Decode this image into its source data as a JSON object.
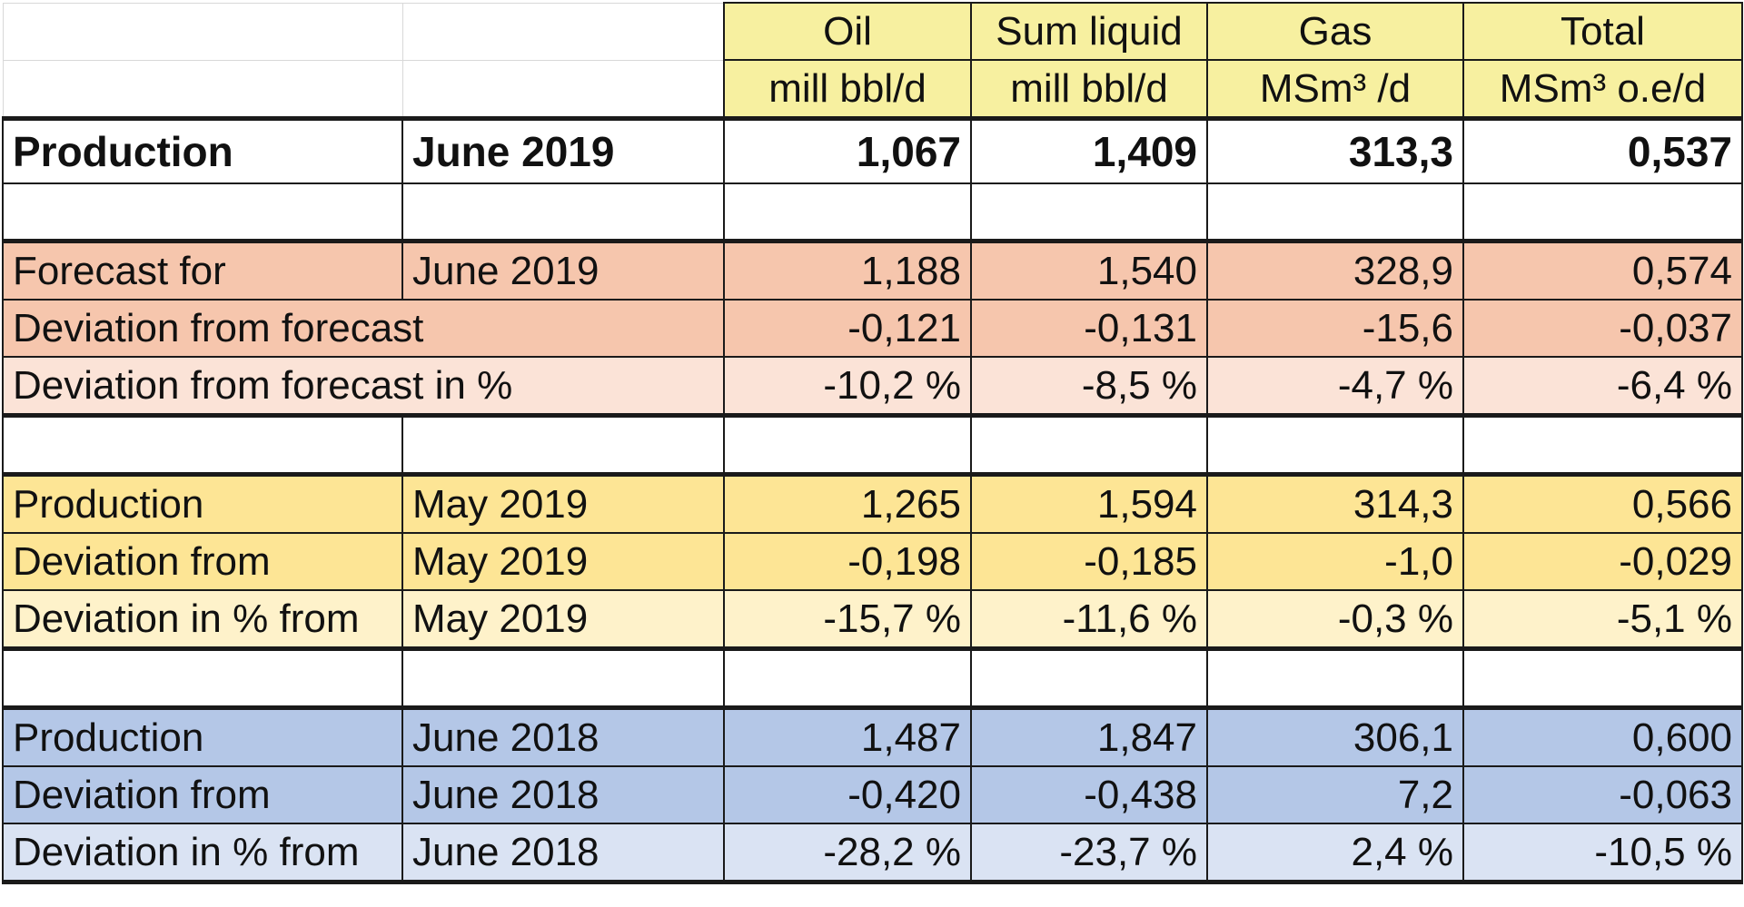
{
  "header": {
    "columns": [
      {
        "name": "Oil",
        "unit": "mill bbl/d"
      },
      {
        "name": "Sum liquid",
        "unit": "mill bbl/d"
      },
      {
        "name": "Gas",
        "unit": "MSm³ /d"
      },
      {
        "name": "Total",
        "unit": "MSm³ o.e/d"
      }
    ]
  },
  "main": {
    "label": "Production",
    "period": "June 2019",
    "values": [
      "1,067",
      "1,409",
      "313,3",
      "0,537"
    ]
  },
  "forecast": {
    "row1": {
      "label": "Forecast for",
      "period": "June 2019",
      "values": [
        "1,188",
        "1,540",
        "328,9",
        "0,574"
      ]
    },
    "row2": {
      "label": "Deviation from forecast",
      "values": [
        "-0,121",
        "-0,131",
        "-15,6",
        "-0,037"
      ]
    },
    "row3": {
      "label": "Deviation from forecast in %",
      "values": [
        "-10,2 %",
        "-8,5 %",
        "-4,7 %",
        "-6,4 %"
      ]
    }
  },
  "prev_month": {
    "row1": {
      "label": "Production",
      "period": "May 2019",
      "values": [
        "1,265",
        "1,594",
        "314,3",
        "0,566"
      ]
    },
    "row2": {
      "label": "Deviation from",
      "period": "May 2019",
      "values": [
        "-0,198",
        "-0,185",
        "-1,0",
        "-0,029"
      ]
    },
    "row3": {
      "label": "Deviation  in % from",
      "period": "May 2019",
      "values": [
        "-15,7 %",
        "-11,6 %",
        "-0,3 %",
        "-5,1 %"
      ]
    }
  },
  "prev_year": {
    "row1": {
      "label": "Production",
      "period": "June 2018",
      "values": [
        "1,487",
        "1,847",
        "306,1",
        "0,600"
      ]
    },
    "row2": {
      "label": "Deviation from",
      "period": "June 2018",
      "values": [
        "-0,420",
        "-0,438",
        "7,2",
        "-0,063"
      ]
    },
    "row3": {
      "label": "Deviation  in % from",
      "period": "June 2018",
      "values": [
        "-28,2 %",
        "-23,7 %",
        "2,4 %",
        "-10,5 %"
      ]
    }
  },
  "colors": {
    "header_yellow": "#f7f0a0",
    "forecast": "#f6c6ad",
    "forecast_light": "#fbe3d7",
    "prev_month": "#fde595",
    "prev_month_light": "#fef2ca",
    "prev_year": "#b4c7e7",
    "prev_year_light": "#dae3f3"
  }
}
